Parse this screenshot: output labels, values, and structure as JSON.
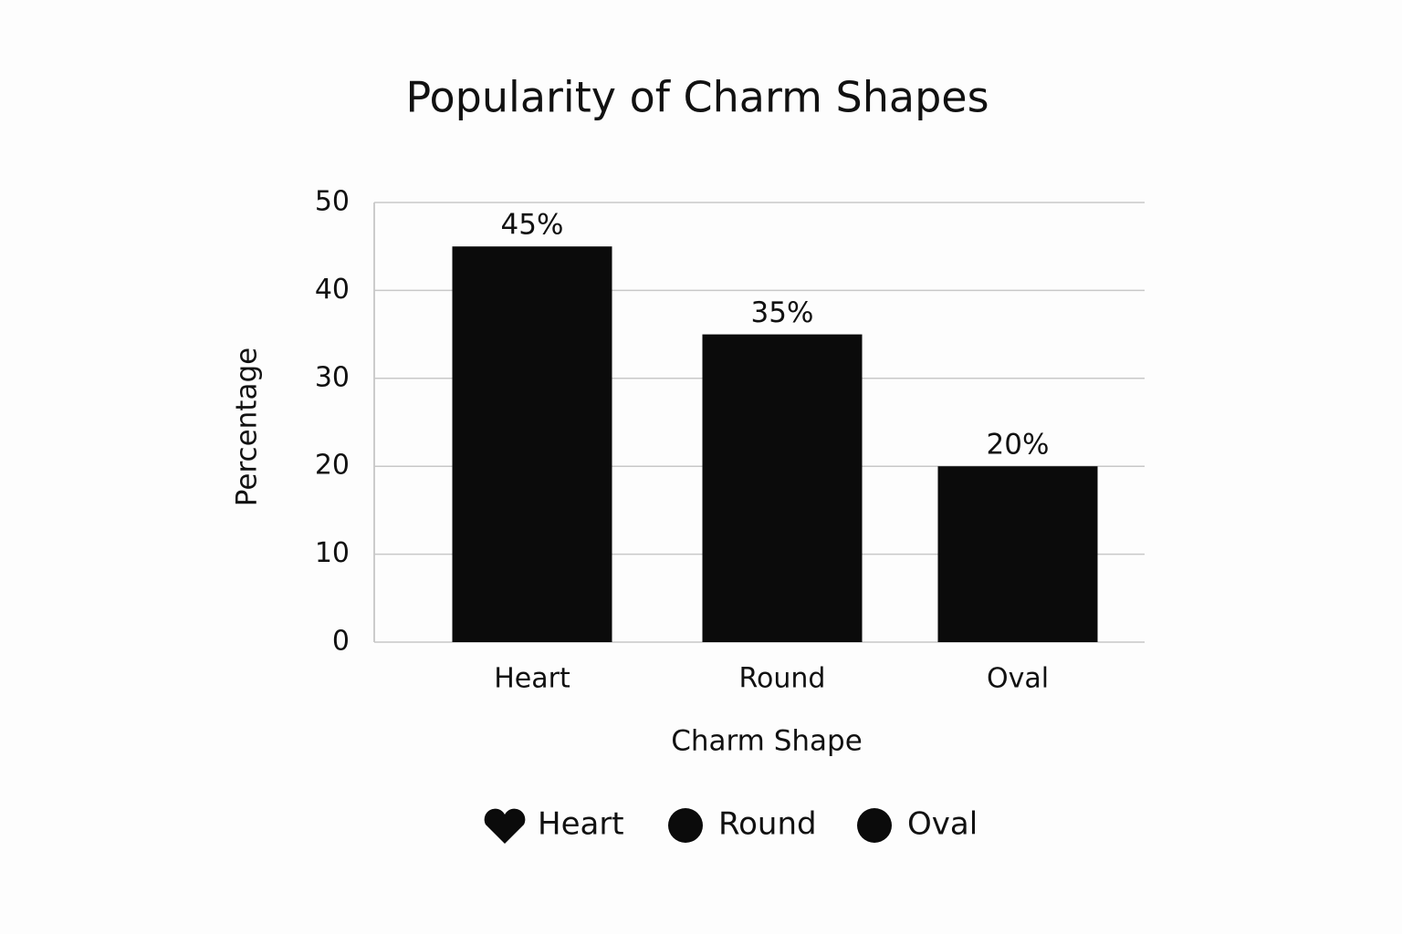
{
  "chart_data": {
    "type": "bar",
    "title": "Popularity of Charm Shapes",
    "x_label": "Charm Shape",
    "y_label": "Percentage",
    "categories": [
      "Heart",
      "Round",
      "Oval"
    ],
    "values": [
      45,
      35,
      20
    ],
    "value_labels": [
      "45%",
      "35%",
      "20%"
    ],
    "color": "#0b0b0b",
    "ylim": [
      0,
      50
    ],
    "yticks": [
      0,
      10,
      20,
      30,
      40,
      50
    ],
    "grid": true,
    "legend": "bottom"
  }
}
